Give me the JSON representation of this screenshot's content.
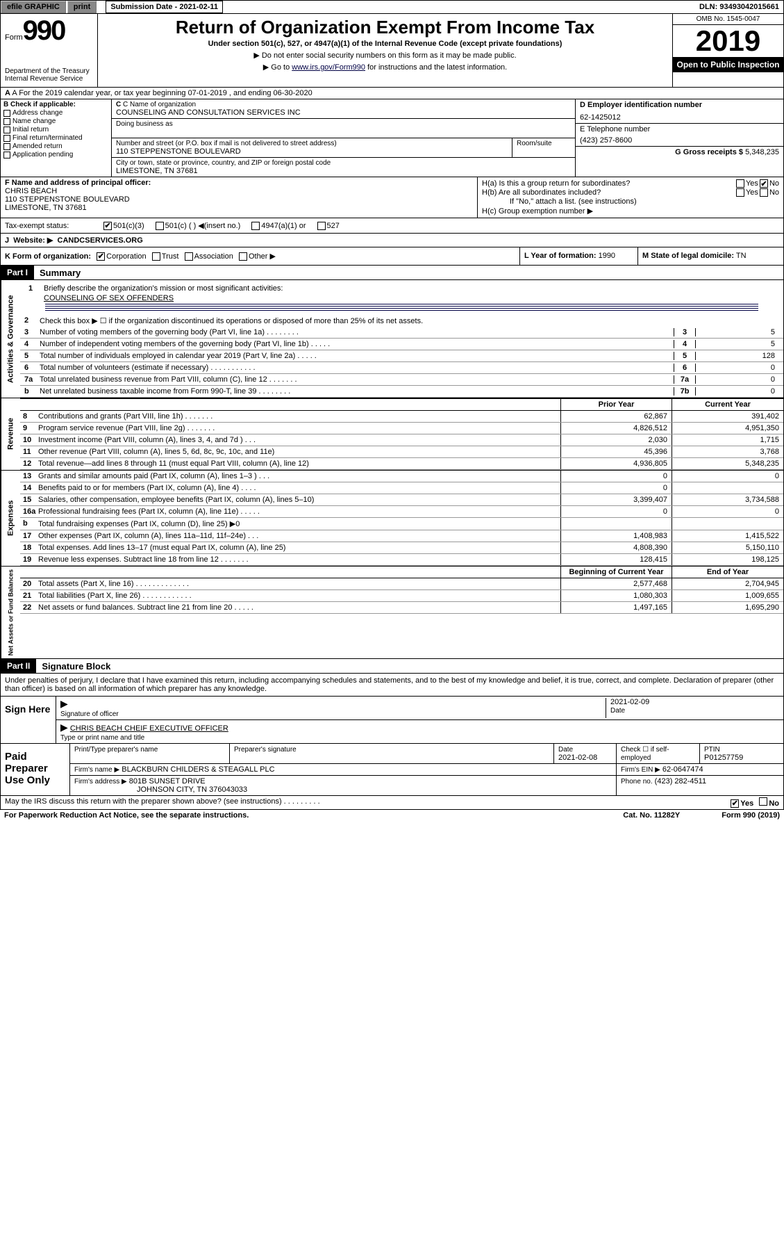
{
  "topbar": {
    "efile_label": "efile GRAPHIC",
    "print_btn": "print",
    "submission_label": "Submission Date - 2021-02-11",
    "dln": "DLN: 93493042015661"
  },
  "header": {
    "form_prefix": "Form",
    "form_number": "990",
    "dept": "Department of the Treasury\nInternal Revenue Service",
    "title": "Return of Organization Exempt From Income Tax",
    "sub": "Under section 501(c), 527, or 4947(a)(1) of the Internal Revenue Code (except private foundations)",
    "note1": "▶ Do not enter social security numbers on this form as it may be made public.",
    "note2_pre": "▶ Go to ",
    "note2_link": "www.irs.gov/Form990",
    "note2_post": " for instructions and the latest information.",
    "omb": "OMB No. 1545-0047",
    "year": "2019",
    "open": "Open to Public Inspection"
  },
  "row_a": "A For the 2019 calendar year, or tax year beginning 07-01-2019   , and ending 06-30-2020",
  "box_b": {
    "label": "B Check if applicable:",
    "items": [
      "Address change",
      "Name change",
      "Initial return",
      "Final return/terminated",
      "Amended return",
      "Application pending"
    ]
  },
  "box_c": {
    "name_label": "C Name of organization",
    "name": "COUNSELING AND CONSULTATION SERVICES INC",
    "dba_label": "Doing business as",
    "addr_label": "Number and street (or P.O. box if mail is not delivered to street address)",
    "room_label": "Room/suite",
    "addr": "110 STEPPENSTONE BOULEVARD",
    "city_label": "City or town, state or province, country, and ZIP or foreign postal code",
    "city": "LIMESTONE, TN  37681"
  },
  "box_d": {
    "label": "D Employer identification number",
    "val": "62-1425012"
  },
  "box_e": {
    "label": "E Telephone number",
    "val": "(423) 257-8600"
  },
  "box_g": {
    "label": "G Gross receipts $",
    "val": "5,348,235"
  },
  "box_f": {
    "label": "F  Name and address of principal officer:",
    "name": "CHRIS BEACH",
    "addr1": "110 STEPPENSTONE BOULEVARD",
    "addr2": "LIMESTONE, TN  37681"
  },
  "box_h": {
    "a_label": "H(a)  Is this a group return for subordinates?",
    "b_label": "H(b)  Are all subordinates included?",
    "ifno": "If \"No,\" attach a list. (see instructions)",
    "c_label": "H(c)  Group exemption number ▶"
  },
  "tax_status": {
    "label": "Tax-exempt status:",
    "opts": [
      "501(c)(3)",
      "501(c) (  )  ◀(insert no.)",
      "4947(a)(1) or",
      "527"
    ]
  },
  "website": {
    "label": "Website: ▶",
    "val": "CANDCSERVICES.ORG"
  },
  "row_k": {
    "label": "K Form of organization:",
    "opts": [
      "Corporation",
      "Trust",
      "Association",
      "Other ▶"
    ]
  },
  "row_l": {
    "label": "L Year of formation:",
    "val": "1990"
  },
  "row_m": {
    "label": "M State of legal domicile:",
    "val": "TN"
  },
  "part1": {
    "hdr": "Part I",
    "title": "Summary",
    "side_gov": "Activities & Governance",
    "q1": "Briefly describe the organization's mission or most significant activities:",
    "q1_ans": "COUNSELING OF SEX OFFENDERS",
    "q2": "Check this box ▶ ☐ if the organization discontinued its operations or disposed of more than 25% of its net assets.",
    "lines_gov": [
      {
        "num": "3",
        "txt": "Number of voting members of the governing body (Part VI, line 1a)  .    .    .    .    .    .    .    .",
        "box": "3",
        "ans": "5"
      },
      {
        "num": "4",
        "txt": "Number of independent voting members of the governing body (Part VI, line 1b)   .    .    .    .    .",
        "box": "4",
        "ans": "5"
      },
      {
        "num": "5",
        "txt": "Total number of individuals employed in calendar year 2019 (Part V, line 2a)   .    .    .    .    .",
        "box": "5",
        "ans": "128"
      },
      {
        "num": "6",
        "txt": "Total number of volunteers (estimate if necessary)   .    .    .    .    .    .    .    .    .    .    .",
        "box": "6",
        "ans": "0"
      },
      {
        "num": "7a",
        "txt": "Total unrelated business revenue from Part VIII, column (C), line 12   .    .    .    .    .    .    .",
        "box": "7a",
        "ans": "0"
      },
      {
        "num": "b",
        "txt": "Net unrelated business taxable income from Form 990-T, line 39   .    .    .    .    .    .    .    .",
        "box": "7b",
        "ans": "0"
      }
    ],
    "side_rev": "Revenue",
    "hdr_prior": "Prior Year",
    "hdr_curr": "Current Year",
    "lines_rev": [
      {
        "num": "8",
        "txt": "Contributions and grants (Part VIII, line 1h)   .    .    .    .    .    .    .",
        "prior": "62,867",
        "curr": "391,402"
      },
      {
        "num": "9",
        "txt": "Program service revenue (Part VIII, line 2g)   .    .    .    .    .    .    .",
        "prior": "4,826,512",
        "curr": "4,951,350"
      },
      {
        "num": "10",
        "txt": "Investment income (Part VIII, column (A), lines 3, 4, and 7d )   .    .    .",
        "prior": "2,030",
        "curr": "1,715"
      },
      {
        "num": "11",
        "txt": "Other revenue (Part VIII, column (A), lines 5, 6d, 8c, 9c, 10c, and 11e)",
        "prior": "45,396",
        "curr": "3,768"
      },
      {
        "num": "12",
        "txt": "Total revenue—add lines 8 through 11 (must equal Part VIII, column (A), line 12)",
        "prior": "4,936,805",
        "curr": "5,348,235"
      }
    ],
    "side_exp": "Expenses",
    "lines_exp": [
      {
        "num": "13",
        "txt": "Grants and similar amounts paid (Part IX, column (A), lines 1–3 )   .    .    .",
        "prior": "0",
        "curr": "0"
      },
      {
        "num": "14",
        "txt": "Benefits paid to or for members (Part IX, column (A), line 4)   .    .    .    .",
        "prior": "0",
        "curr": ""
      },
      {
        "num": "15",
        "txt": "Salaries, other compensation, employee benefits (Part IX, column (A), lines 5–10)",
        "prior": "3,399,407",
        "curr": "3,734,588"
      },
      {
        "num": "16a",
        "txt": "Professional fundraising fees (Part IX, column (A), line 11e)   .    .    .    .    .",
        "prior": "0",
        "curr": "0"
      },
      {
        "num": "b",
        "txt": "Total fundraising expenses (Part IX, column (D), line 25) ▶0",
        "prior": "",
        "curr": ""
      },
      {
        "num": "17",
        "txt": "Other expenses (Part IX, column (A), lines 11a–11d, 11f–24e)   .    .    .",
        "prior": "1,408,983",
        "curr": "1,415,522"
      },
      {
        "num": "18",
        "txt": "Total expenses. Add lines 13–17 (must equal Part IX, column (A), line 25)",
        "prior": "4,808,390",
        "curr": "5,150,110"
      },
      {
        "num": "19",
        "txt": "Revenue less expenses. Subtract line 18 from line 12   .    .    .    .    .    .    .",
        "prior": "128,415",
        "curr": "198,125"
      }
    ],
    "side_net": "Net Assets or Fund Balances",
    "hdr_begin": "Beginning of Current Year",
    "hdr_end": "End of Year",
    "lines_net": [
      {
        "num": "20",
        "txt": "Total assets (Part X, line 16)   .    .    .    .    .    .    .    .    .    .    .    .    .",
        "prior": "2,577,468",
        "curr": "2,704,945"
      },
      {
        "num": "21",
        "txt": "Total liabilities (Part X, line 26)   .    .    .    .    .    .    .    .    .    .    .    .",
        "prior": "1,080,303",
        "curr": "1,009,655"
      },
      {
        "num": "22",
        "txt": "Net assets or fund balances. Subtract line 21 from line 20   .    .    .    .    .",
        "prior": "1,497,165",
        "curr": "1,695,290"
      }
    ]
  },
  "part2": {
    "hdr": "Part II",
    "title": "Signature Block",
    "decl": "Under penalties of perjury, I declare that I have examined this return, including accompanying schedules and statements, and to the best of my knowledge and belief, it is true, correct, and complete. Declaration of preparer (other than officer) is based on all information of which preparer has any knowledge."
  },
  "sign": {
    "side": "Sign Here",
    "sig_label": "Signature of officer",
    "date": "2021-02-09",
    "date_label": "Date",
    "name": "CHRIS BEACH CHEIF EXECUTIVE OFFICER",
    "name_label": "Type or print name and title"
  },
  "prep": {
    "side": "Paid Preparer Use Only",
    "h1": "Print/Type preparer's name",
    "h2": "Preparer's signature",
    "h3": "Date",
    "date": "2021-02-08",
    "h4": "Check ☐ if self-employed",
    "h5": "PTIN",
    "ptin": "P01257759",
    "firm_name_label": "Firm's name      ▶",
    "firm_name": "BLACKBURN CHILDERS & STEAGALL PLC",
    "firm_ein_label": "Firm's EIN ▶",
    "firm_ein": "62-0647474",
    "firm_addr_label": "Firm's address ▶",
    "firm_addr": "801B SUNSET DRIVE",
    "firm_city": "JOHNSON CITY, TN  376043033",
    "phone_label": "Phone no.",
    "phone": "(423) 282-4511"
  },
  "footer": {
    "q": "May the IRS discuss this return with the preparer shown above? (see instructions)   .    .    .    .    .    .    .    .    .",
    "paperwork": "For Paperwork Reduction Act Notice, see the separate instructions.",
    "cat": "Cat. No. 11282Y",
    "form": "Form 990 (2019)"
  }
}
